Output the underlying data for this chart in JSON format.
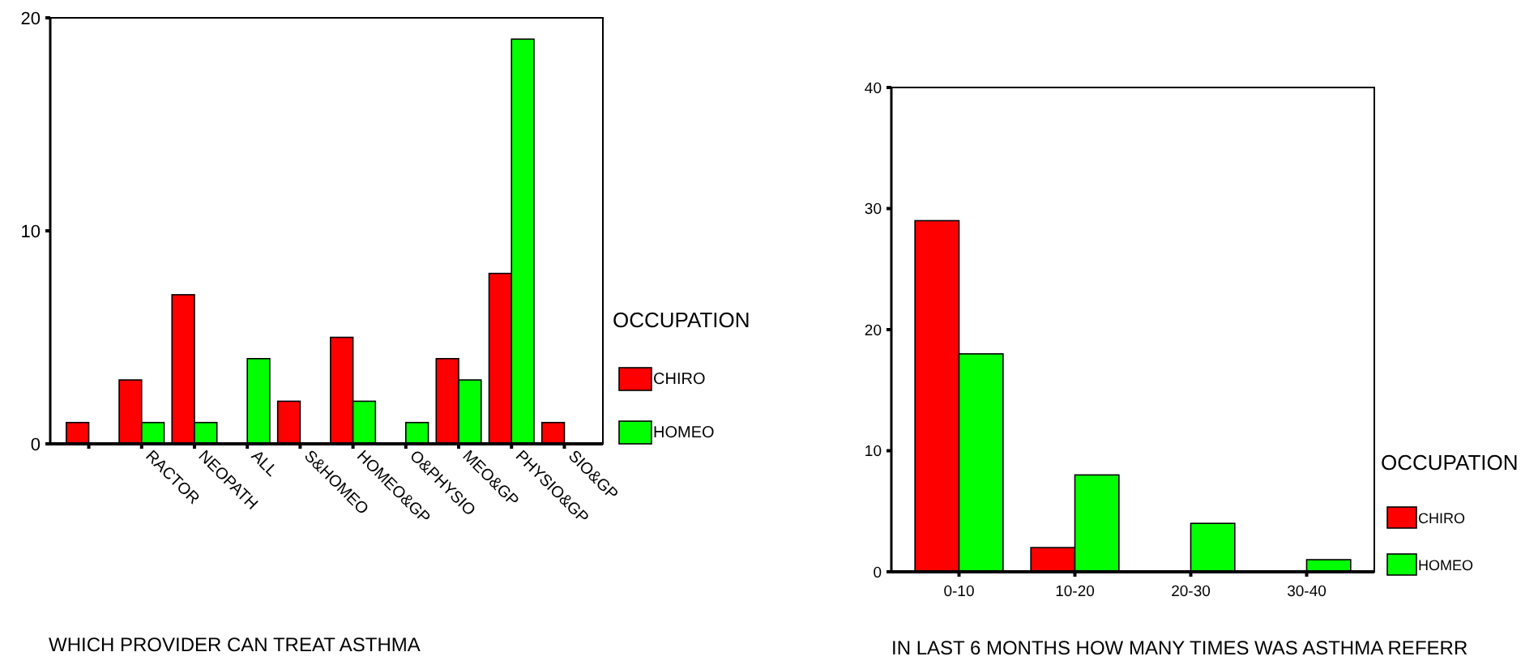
{
  "chart_data": [
    {
      "type": "bar",
      "xlabel": "WHICH PROVIDER CAN TREAT ASTHMA",
      "legend_title": "OCCUPATION",
      "legend": "right",
      "categories": [
        null,
        "RACTOR",
        "NEOPATH",
        "ALL",
        "S&HOMEO",
        "HOMEO&GP",
        "O&PHYSIO",
        "MEO&GP",
        "PHYSIO&GP",
        "SIO&GP"
      ],
      "series": [
        {
          "name": "CHIRO",
          "color": "#ff0000",
          "values": [
            1,
            3,
            7,
            0,
            2,
            5,
            0,
            4,
            8,
            1
          ]
        },
        {
          "name": "HOMEO",
          "color": "#00ff00",
          "values": [
            0,
            1,
            1,
            4,
            0,
            2,
            1,
            3,
            19,
            0
          ]
        }
      ],
      "ylim": [
        0,
        20
      ],
      "yticks": [
        0,
        10,
        20
      ]
    },
    {
      "type": "bar",
      "xlabel": "IN LAST 6 MONTHS HOW MANY TIMES WAS ASTHMA REFERR",
      "legend_title": "OCCUPATION",
      "legend": "right",
      "categories": [
        "0-10",
        "10-20",
        "20-30",
        "30-40"
      ],
      "series": [
        {
          "name": "CHIRO",
          "color": "#ff0000",
          "values": [
            29,
            2,
            0,
            0
          ]
        },
        {
          "name": "HOMEO",
          "color": "#00ff00",
          "values": [
            18,
            8,
            4,
            1
          ]
        }
      ],
      "ylim": [
        0,
        40
      ],
      "yticks": [
        0,
        10,
        20,
        30,
        40
      ]
    }
  ]
}
